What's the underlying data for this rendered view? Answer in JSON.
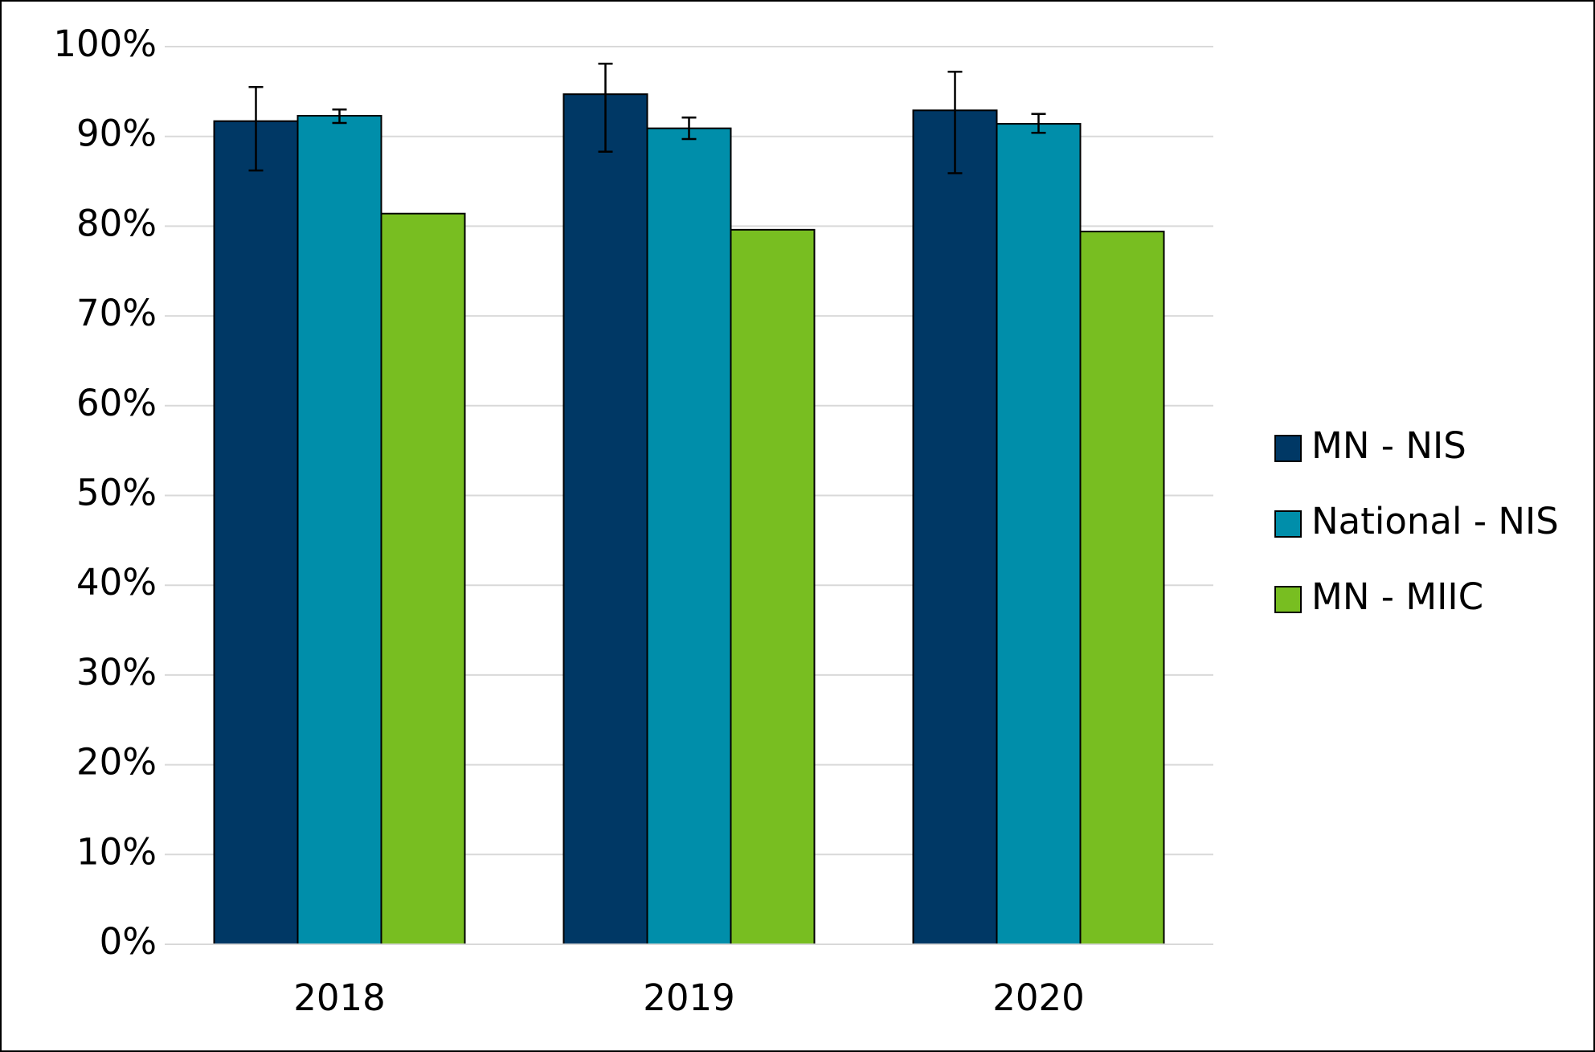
{
  "chart_data": {
    "type": "bar",
    "categories": [
      "2018",
      "2019",
      "2020"
    ],
    "series": [
      {
        "name": "MN - NIS",
        "color": "#003865",
        "values": [
          91.7,
          94.7,
          92.9
        ],
        "error_low": [
          86.2,
          88.3,
          85.9
        ],
        "error_high": [
          95.5,
          98.1,
          97.2
        ]
      },
      {
        "name": "National - NIS",
        "color": "#008eaa",
        "values": [
          92.3,
          90.9,
          91.4
        ],
        "error_low": [
          91.5,
          89.7,
          90.4
        ],
        "error_high": [
          93.0,
          92.1,
          92.5
        ]
      },
      {
        "name": "MN - MIIC",
        "color": "#78be21",
        "values": [
          81.4,
          79.6,
          79.4
        ]
      }
    ],
    "ylim": [
      0,
      100
    ],
    "yticks": [
      {
        "value": 0,
        "label": "0%"
      },
      {
        "value": 10,
        "label": "10%"
      },
      {
        "value": 20,
        "label": "20%"
      },
      {
        "value": 30,
        "label": "30%"
      },
      {
        "value": 40,
        "label": "40%"
      },
      {
        "value": 50,
        "label": "50%"
      },
      {
        "value": 60,
        "label": "60%"
      },
      {
        "value": 70,
        "label": "70%"
      },
      {
        "value": 80,
        "label": "80%"
      },
      {
        "value": 90,
        "label": "90%"
      },
      {
        "value": 100,
        "label": "100%"
      }
    ],
    "grid": true,
    "legend": "right"
  }
}
